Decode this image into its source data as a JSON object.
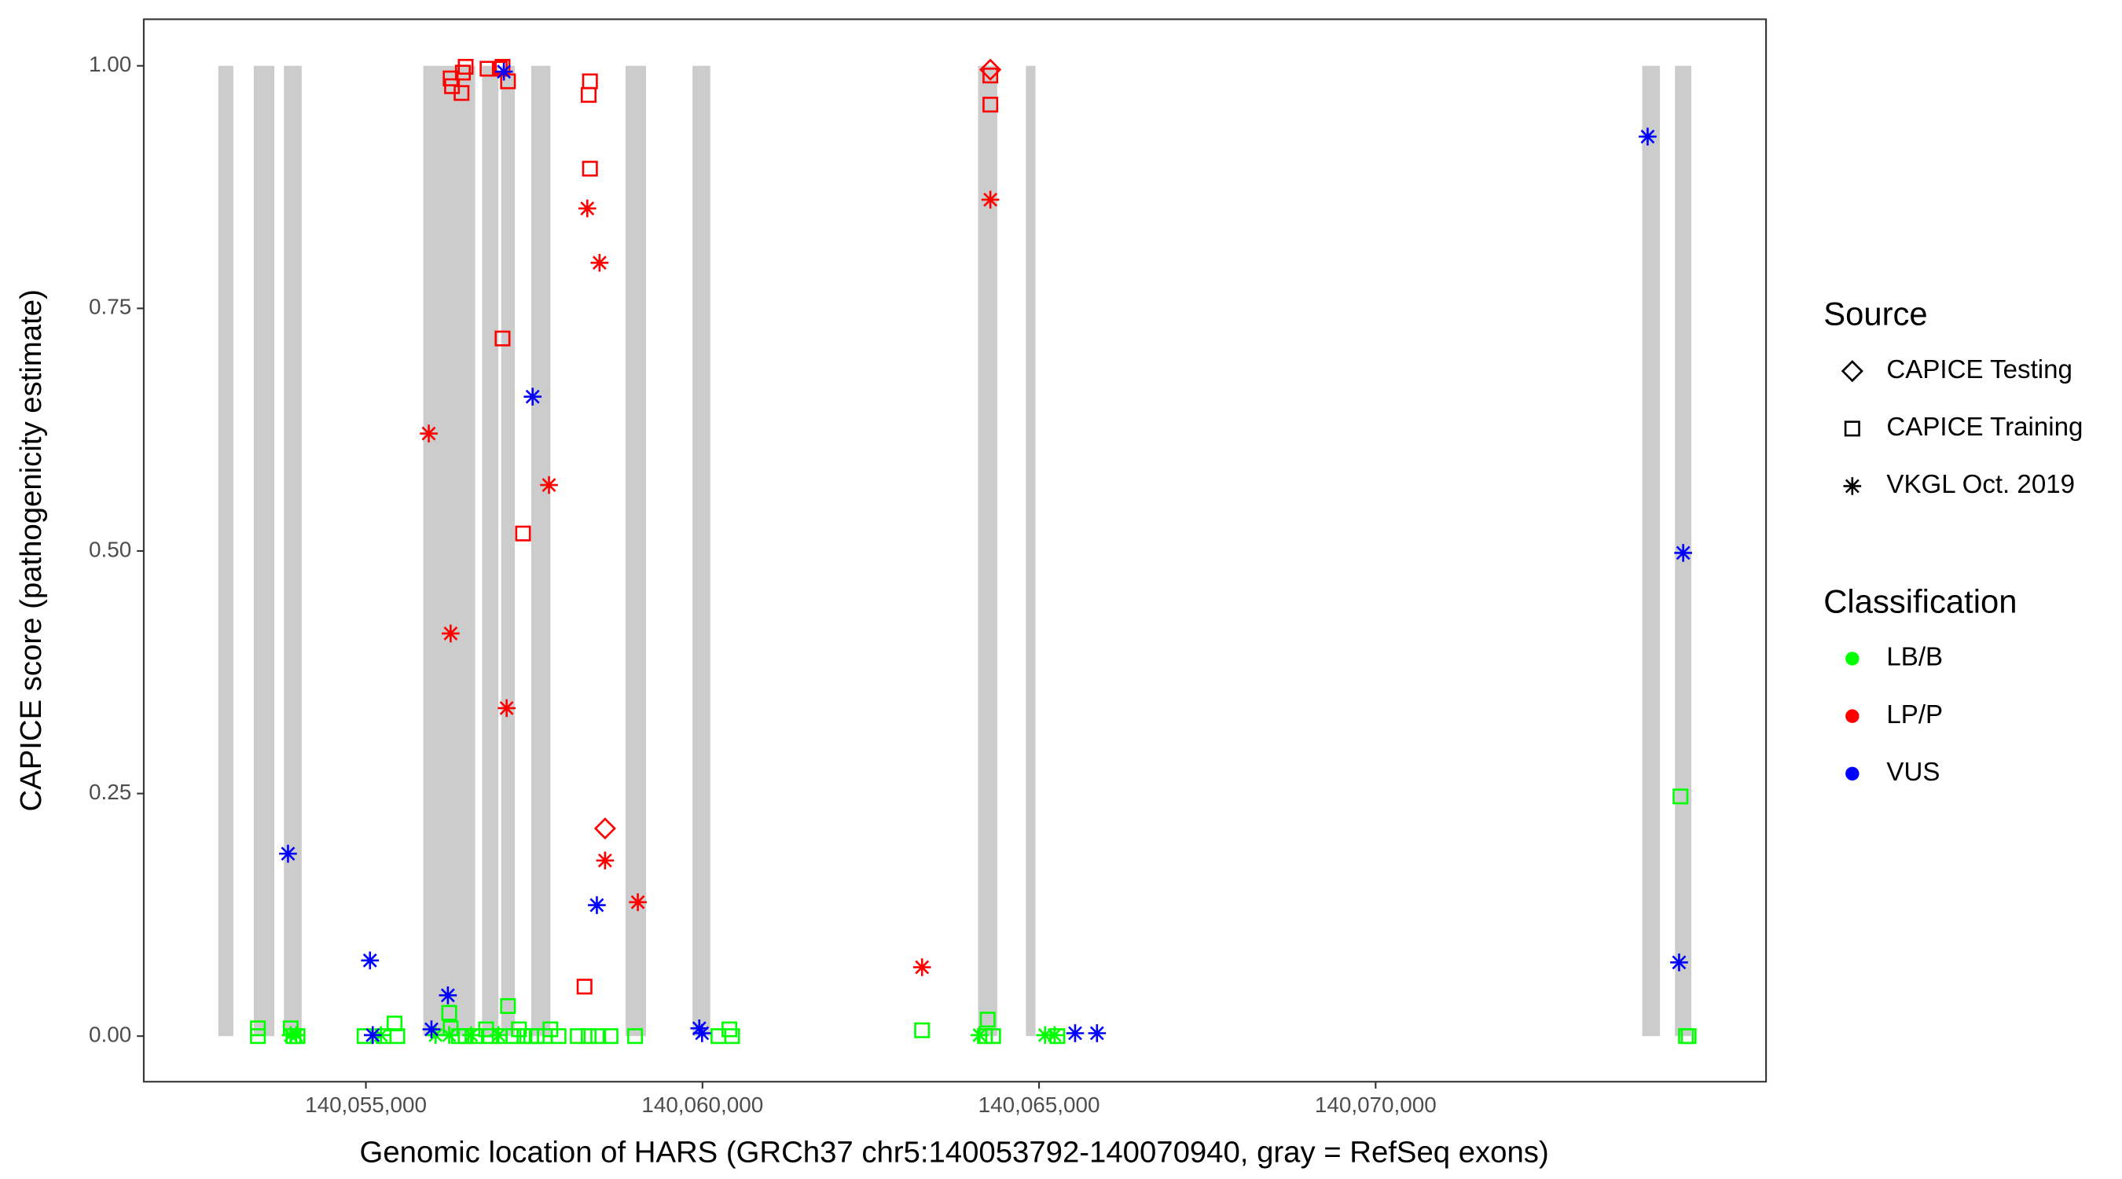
{
  "chart_data": {
    "type": "scatter",
    "x_label": "Genomic location of HARS (GRCh37 chr5:140053792-140070940, gray = RefSeq exons)",
    "y_label": "CAPICE score (pathogenicity estimate)",
    "xlim": [
      140051700,
      140075800
    ],
    "ylim": [
      -0.047,
      1.048
    ],
    "xticks": [
      {
        "value": 140055000,
        "label": "140,055,000"
      },
      {
        "value": 140060000,
        "label": "140,060,000"
      },
      {
        "value": 140065000,
        "label": "140,065,000"
      },
      {
        "value": 140070000,
        "label": "140,070,000"
      }
    ],
    "yticks": [
      {
        "value": 0,
        "label": "0.00"
      },
      {
        "value": 0.25,
        "label": "0.25"
      },
      {
        "value": 0.5,
        "label": "0.50"
      },
      {
        "value": 0.75,
        "label": "0.75"
      },
      {
        "value": 1,
        "label": "1.00"
      }
    ],
    "grid": false,
    "exon_color": "#cccccc",
    "exons": [
      [
        140052808,
        140053031
      ],
      [
        140053335,
        140053640
      ],
      [
        140053782,
        140054046
      ],
      [
        140055853,
        140056624
      ],
      [
        140056726,
        140056969
      ],
      [
        140057010,
        140057213
      ],
      [
        140057456,
        140057741
      ],
      [
        140058857,
        140059162
      ],
      [
        140059852,
        140060116
      ],
      [
        140064094,
        140064379
      ],
      [
        140064805,
        140064947
      ],
      [
        140073960,
        140074224
      ],
      [
        140074447,
        140074691
      ]
    ],
    "source_title": "Source",
    "sources": [
      {
        "name": "CAPICE Testing",
        "shape": "diamond"
      },
      {
        "name": "CAPICE Training",
        "shape": "square"
      },
      {
        "name": "VKGL Oct. 2019",
        "shape": "asterisk"
      }
    ],
    "classification_title": "Classification",
    "classifications": [
      {
        "name": "LB/B",
        "color": "#00ff00"
      },
      {
        "name": "LP/P",
        "color": "#ff0000"
      },
      {
        "name": "VUS",
        "color": "#0000ff"
      }
    ],
    "series": [
      {
        "source": 1,
        "classification": 0,
        "x": [
          140053396,
          140053396,
          140053883,
          140053924,
          140053985,
          140054980,
          140055264,
          140055426,
          140055467,
          140056238,
          140056259,
          140056380,
          140056482,
          140056624,
          140056786,
          140056847,
          140056989,
          140057111,
          140057192,
          140057274,
          140057355,
          140057456,
          140057538,
          140057659,
          140057741,
          140057862,
          140058147,
          140058309,
          140058451,
          140058634,
          140058999,
          140060237,
          140060400,
          140060440,
          140063262,
          140064237,
          140064318,
          140064196,
          140065272,
          140074529,
          140074610,
          140074650
        ],
        "y": [
          0.008,
          0,
          0.008,
          0,
          0,
          0,
          0,
          0.013,
          0,
          0.024,
          0.008,
          0,
          0,
          0,
          0.007,
          0,
          0,
          0.031,
          0,
          0.007,
          0,
          0,
          0,
          0,
          0.007,
          0,
          0,
          0,
          0,
          0,
          0,
          0,
          0.007,
          0,
          0.006,
          0.017,
          0,
          0,
          0,
          0.247,
          0,
          0
        ]
      },
      {
        "source": 2,
        "classification": 0,
        "x": [
          140053883,
          140053965,
          140055223,
          140056035,
          140056238,
          140056563,
          140056969,
          140064115,
          140065089,
          140065231
        ],
        "y": [
          0.001,
          0.001,
          0.001,
          0.001,
          0.001,
          0.001,
          0.001,
          0.001,
          0.001,
          0.001
        ]
      },
      {
        "source": 1,
        "classification": 1,
        "x": [
          140056259,
          140056279,
          140056421,
          140056441,
          140056482,
          140056807,
          140056989,
          140057030,
          140057111,
          140058329,
          140058309,
          140058329,
          140057030,
          140057335,
          140058248,
          140064277,
          140064277
        ],
        "y": [
          0.987,
          0.979,
          0.972,
          0.993,
          0.999,
          0.997,
          0.997,
          0.999,
          0.984,
          0.984,
          0.97,
          0.894,
          0.719,
          0.518,
          0.051,
          0.99,
          0.96
        ]
      },
      {
        "source": 2,
        "classification": 1,
        "x": [
          140055934,
          140056259,
          140057091,
          140057720,
          140058289,
          140058471,
          140058553,
          140059040,
          140063262,
          140064277
        ],
        "y": [
          0.621,
          0.415,
          0.338,
          0.568,
          0.853,
          0.797,
          0.181,
          0.138,
          0.071,
          0.862
        ]
      },
      {
        "source": 0,
        "classification": 1,
        "x": [
          140058553,
          140064277
        ],
        "y": [
          0.214,
          0.996
        ]
      },
      {
        "source": 2,
        "classification": 2,
        "x": [
          140053843,
          140055061,
          140055102,
          140055974,
          140056218,
          140057050,
          140057477,
          140058431,
          140059953,
          140059994,
          140065536,
          140065861,
          140074041,
          140074569,
          140074508
        ],
        "y": [
          0.188,
          0.078,
          0.001,
          0.007,
          0.042,
          0.994,
          0.659,
          0.135,
          0.008,
          0.003,
          0.003,
          0.003,
          0.927,
          0.498,
          0.076
        ]
      }
    ]
  }
}
